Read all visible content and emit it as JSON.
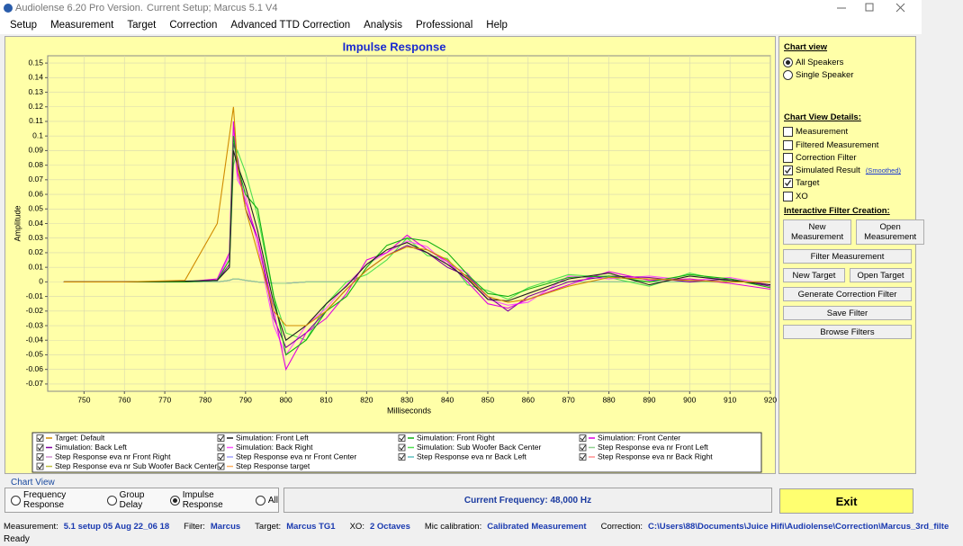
{
  "window": {
    "title": "Audiolense 6.20 Pro Version.",
    "setup": "Current Setup; Marcus 5.1 V4"
  },
  "menu": [
    "Setup",
    "Measurement",
    "Target",
    "Correction",
    "Advanced TTD Correction",
    "Analysis",
    "Professional",
    "Help"
  ],
  "chart_data": {
    "type": "line",
    "title": "Impulse Response",
    "x_label": "Milliseconds",
    "y_label": "Amplitude",
    "x": [
      745,
      760,
      775,
      783,
      786,
      787,
      788,
      790,
      793,
      797,
      800,
      805,
      810,
      815,
      820,
      825,
      830,
      835,
      840,
      845,
      850,
      855,
      860,
      870,
      880,
      890,
      900,
      910,
      920
    ],
    "xlim": [
      741,
      920
    ],
    "ylim": [
      -0.075,
      0.155
    ],
    "xticks": [
      750,
      760,
      770,
      780,
      790,
      800,
      810,
      820,
      830,
      840,
      850,
      860,
      870,
      880,
      890,
      900,
      910,
      920
    ],
    "yticks": [
      -0.07,
      -0.06,
      -0.05,
      -0.04,
      -0.03,
      -0.02,
      -0.01,
      0,
      0.01,
      0.02,
      0.03,
      0.04,
      0.05,
      0.06,
      0.07,
      0.08,
      0.09,
      0.1,
      0.11,
      0.12,
      0.13,
      0.14,
      0.15
    ],
    "grid": true,
    "series": [
      {
        "name": "Target: Default",
        "color": "#d08a00",
        "checked": true,
        "values": [
          0,
          0,
          0.001,
          0.04,
          0.1,
          0.12,
          0.08,
          0.05,
          0.02,
          -0.02,
          -0.03,
          -0.03,
          -0.02,
          -0.005,
          0.008,
          0.018,
          0.024,
          0.022,
          0.015,
          0.003,
          -0.01,
          -0.014,
          -0.012,
          -0.003,
          0.003,
          0.002,
          0.001,
          0,
          0
        ]
      },
      {
        "name": "Simulation: Front Left",
        "color": "#202020",
        "checked": true,
        "values": [
          0,
          0,
          0.0005,
          0.001,
          0.01,
          0.09,
          0.08,
          0.065,
          0.035,
          -0.015,
          -0.04,
          -0.03,
          -0.015,
          -0.003,
          0.012,
          0.022,
          0.027,
          0.02,
          0.012,
          0.002,
          -0.012,
          -0.013,
          -0.008,
          0.002,
          0.006,
          -0.002,
          0.004,
          0.001,
          -0.002
        ]
      },
      {
        "name": "Simulation: Front Right",
        "color": "#10b010",
        "checked": true,
        "values": [
          0,
          0,
          0,
          0.001,
          0.015,
          0.1,
          0.08,
          0.06,
          0.05,
          -0.01,
          -0.05,
          -0.04,
          -0.02,
          -0.01,
          0.01,
          0.025,
          0.03,
          0.028,
          0.02,
          0.005,
          -0.008,
          -0.01,
          -0.005,
          0.003,
          0.004,
          0,
          0.005,
          0.002,
          -0.004
        ]
      },
      {
        "name": "Simulation: Front Center",
        "color": "#e000e0",
        "checked": true,
        "values": [
          0,
          0,
          0,
          0.002,
          0.02,
          0.11,
          0.075,
          0.055,
          0.03,
          -0.02,
          -0.06,
          -0.035,
          -0.025,
          -0.008,
          0.015,
          0.02,
          0.032,
          0.022,
          0.014,
          0,
          -0.015,
          -0.018,
          -0.012,
          -0.002,
          0.007,
          0.001,
          0.002,
          -0.001,
          -0.005
        ]
      },
      {
        "name": "Simulation: Back Left",
        "color": "#8000a0",
        "checked": true,
        "values": [
          0,
          0,
          0,
          0.001,
          0.012,
          0.095,
          0.085,
          0.05,
          0.03,
          -0.025,
          -0.045,
          -0.035,
          -0.02,
          -0.005,
          0.008,
          0.018,
          0.025,
          0.02,
          0.01,
          0.004,
          -0.01,
          -0.02,
          -0.01,
          0,
          0.004,
          0.003,
          0,
          0.002,
          -0.003
        ]
      },
      {
        "name": "Simulation: Back Right",
        "color": "#ff50ff",
        "checked": true,
        "values": [
          0,
          0,
          0,
          0.001,
          0.018,
          0.105,
          0.07,
          0.06,
          0.025,
          -0.03,
          -0.05,
          -0.03,
          -0.018,
          -0.002,
          0.012,
          0.02,
          0.028,
          0.024,
          0.012,
          0.006,
          -0.012,
          -0.016,
          -0.014,
          0.004,
          0.002,
          0.004,
          0.001,
          0.003,
          -0.002
        ]
      },
      {
        "name": "Simulation: Sub Woofer Back Center",
        "color": "#50e050",
        "checked": true,
        "values": [
          0,
          0,
          0,
          0.001,
          0.01,
          0.08,
          0.09,
          0.075,
          0.045,
          -0.01,
          -0.035,
          -0.04,
          -0.015,
          0,
          0.005,
          0.015,
          0.03,
          0.018,
          0.016,
          -0.002,
          -0.006,
          -0.012,
          -0.004,
          0.005,
          0.003,
          -0.003,
          0.006,
          0,
          0
        ]
      },
      {
        "name": "Step Response eva nr Front Left",
        "color": "#90d090",
        "checked": true,
        "values": [
          0,
          0,
          0,
          0,
          0.001,
          0.002,
          0.002,
          0.001,
          0,
          -0.001,
          -0.001,
          0,
          0,
          0,
          0,
          0,
          0,
          0,
          0,
          0,
          0,
          0,
          0,
          0,
          0,
          0,
          0,
          0,
          0
        ]
      },
      {
        "name": "Step Response eva nr Front Right",
        "color": "#d090d0",
        "checked": true,
        "values": [
          0,
          0,
          0,
          0,
          0.001,
          0.002,
          0.002,
          0.001,
          0,
          -0.001,
          -0.001,
          0,
          0,
          0,
          0,
          0,
          0,
          0,
          0,
          0,
          0,
          0,
          0,
          0,
          0,
          0,
          0,
          0,
          0
        ]
      },
      {
        "name": "Step Response eva nr Front Center",
        "color": "#a0a0ff",
        "checked": true,
        "values": [
          0,
          0,
          0,
          0,
          0.001,
          0.002,
          0.002,
          0.001,
          0,
          -0.001,
          -0.001,
          0,
          0,
          0,
          0,
          0,
          0,
          0,
          0,
          0,
          0,
          0,
          0,
          0,
          0,
          0,
          0,
          0,
          0
        ]
      },
      {
        "name": "Step Response eva nr Back Left",
        "color": "#60c0c0",
        "checked": true,
        "values": [
          0,
          0,
          0,
          0,
          0.001,
          0.002,
          0.002,
          0.001,
          0,
          -0.001,
          -0.001,
          0,
          0,
          0,
          0,
          0,
          0,
          0,
          0,
          0,
          0,
          0,
          0,
          0,
          0,
          0,
          0,
          0,
          0
        ]
      },
      {
        "name": "Step Response eva nr Back Right",
        "color": "#ff9090",
        "checked": true,
        "values": [
          0,
          0,
          0,
          0,
          0.001,
          0.002,
          0.002,
          0.001,
          0,
          -0.001,
          -0.001,
          0,
          0,
          0,
          0,
          0,
          0,
          0,
          0,
          0,
          0,
          0,
          0,
          0,
          0,
          0,
          0,
          0,
          0
        ]
      },
      {
        "name": "Step Response eva nr Sub Woofer Back Center",
        "color": "#c0c040",
        "checked": true,
        "values": [
          0,
          0,
          0,
          0,
          0.001,
          0.002,
          0.002,
          0.001,
          0,
          -0.001,
          -0.001,
          0,
          0,
          0,
          0,
          0,
          0,
          0,
          0,
          0,
          0,
          0,
          0,
          0,
          0,
          0,
          0,
          0,
          0
        ]
      },
      {
        "name": "Step Response target",
        "color": "#ffb060",
        "checked": true,
        "values": [
          0,
          0,
          0,
          0,
          0.001,
          0.002,
          0.002,
          0.001,
          0,
          -0.001,
          -0.001,
          0,
          0,
          0,
          0,
          0,
          0,
          0,
          0,
          0,
          0,
          0,
          0,
          0,
          0,
          0,
          0,
          0,
          0
        ]
      }
    ]
  },
  "sidebar": {
    "chart_view": {
      "title": "Chart view",
      "options": [
        {
          "label": "All Speakers",
          "selected": true
        },
        {
          "label": "Single Speaker",
          "selected": false
        }
      ]
    },
    "details": {
      "title": "Chart View Details:",
      "smoothed": "(Smoothed)",
      "items": [
        {
          "label": "Measurement",
          "checked": false
        },
        {
          "label": "Filtered Measurement",
          "checked": false
        },
        {
          "label": "Correction Filter",
          "checked": false
        },
        {
          "label": "Simulated Result",
          "checked": true
        },
        {
          "label": "Target",
          "checked": true
        },
        {
          "label": "XO",
          "checked": false
        }
      ]
    },
    "interactive": {
      "title": "Interactive Filter Creation:",
      "rows": [
        [
          "New Measurement",
          "Open Measurement"
        ],
        [
          "Filter Measurement"
        ],
        [
          "New Target",
          "Open Target"
        ],
        [
          "Generate Correction Filter"
        ],
        [
          "Save Filter"
        ],
        [
          "Browse Filters"
        ]
      ]
    }
  },
  "bottom": {
    "title": "Chart View",
    "radios": [
      {
        "label": "Frequency Response",
        "selected": false
      },
      {
        "label": "Group Delay",
        "selected": false
      },
      {
        "label": "Impulse Response",
        "selected": true
      },
      {
        "label": "All",
        "selected": false
      }
    ],
    "current_frequency": "Current Frequency: 48,000 Hz",
    "exit": "Exit"
  },
  "status": {
    "items": [
      {
        "label": "Measurement:",
        "value": "5.1 setup 05 Aug 22_06 18"
      },
      {
        "label": "Filter:",
        "value": "Marcus"
      },
      {
        "label": "Target:",
        "value": "Marcus TG1"
      },
      {
        "label": "XO:",
        "value": "2 Octaves"
      },
      {
        "label": "Mic calibration:",
        "value": "Calibrated Measurement"
      },
      {
        "label": "Correction:",
        "value": "C:\\Users\\88\\Documents\\Juice Hifi\\Audiolense\\Correction\\Marcus_3rd_filte"
      }
    ],
    "ready": "Ready"
  }
}
